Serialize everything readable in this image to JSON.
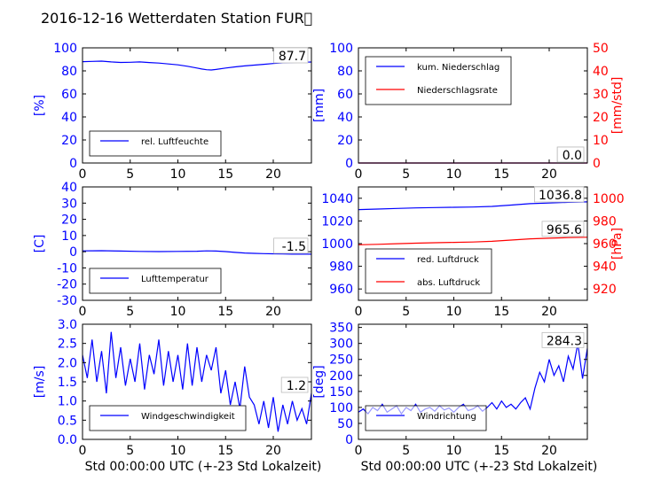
{
  "figure": {
    "title": "2016-12-16 Wetterdaten Station FUR\u0000",
    "colors": {
      "primary": "#0000ff",
      "secondary": "#ff0000",
      "text": "#000000"
    }
  },
  "chart_data": [
    {
      "id": "humidity",
      "type": "line",
      "ylabel": "[%]",
      "ylim": [
        0,
        100
      ],
      "yticks": [
        0,
        20,
        40,
        60,
        80,
        100
      ],
      "xlim": [
        0,
        24
      ],
      "xticks": [
        0,
        5,
        10,
        15,
        20
      ],
      "xticklabels": [
        "0",
        "5",
        "10",
        "15",
        "20"
      ],
      "last_value_label": "87.7",
      "legend": {
        "placement": "lower-left"
      },
      "series": [
        {
          "name": "rel. Luftfeuchte",
          "color": "#0000ff",
          "axis": "left",
          "x": [
            0,
            1,
            2,
            3,
            4,
            5,
            6,
            7,
            8,
            9,
            10,
            11,
            12,
            12.5,
            13,
            13.5,
            14,
            15,
            16,
            17,
            18,
            19,
            20,
            21,
            22,
            23,
            24
          ],
          "y": [
            88,
            88.2,
            88.5,
            87.8,
            87.3,
            87.5,
            87.8,
            87.2,
            86.8,
            86,
            85.2,
            84,
            82.5,
            81.6,
            81,
            80.8,
            81.2,
            82.5,
            83.5,
            84.3,
            85,
            85.7,
            86.4,
            87,
            87.3,
            87.5,
            87.7
          ]
        }
      ]
    },
    {
      "id": "precip",
      "type": "line",
      "ylabel": "[mm]",
      "ylim": [
        0,
        100
      ],
      "yticks": [
        0,
        20,
        40,
        60,
        80,
        100
      ],
      "ylabel_right": "[mm/std]",
      "ylim_right": [
        0,
        50
      ],
      "yticks_right": [
        0,
        10,
        20,
        30,
        40,
        50
      ],
      "xlim": [
        0,
        24
      ],
      "xticks": [
        0,
        5,
        10,
        15,
        20
      ],
      "xticklabels": [
        "0",
        "5",
        "10",
        "15",
        "20"
      ],
      "last_value_labels": [
        "0.0",
        "0.0"
      ],
      "legend": {
        "placement": "upper-left"
      },
      "series": [
        {
          "name": "kum. Niederschlag",
          "color": "#0000ff",
          "axis": "left",
          "x": [
            0,
            24
          ],
          "y": [
            0,
            0
          ]
        },
        {
          "name": "Niederschlagsrate",
          "color": "#ff0000",
          "axis": "right",
          "x": [
            0,
            24
          ],
          "y": [
            0,
            0
          ]
        }
      ]
    },
    {
      "id": "temperature",
      "type": "line",
      "ylabel": "[C]",
      "ylim": [
        -30,
        40
      ],
      "yticks": [
        -30,
        -20,
        -10,
        0,
        10,
        20,
        30,
        40
      ],
      "xlim": [
        0,
        24
      ],
      "xticks": [
        0,
        5,
        10,
        15,
        20
      ],
      "xticklabels": [
        "0",
        "5",
        "10",
        "15",
        "20"
      ],
      "last_value_label": "-1.5",
      "legend": {
        "placement": "lower-left"
      },
      "series": [
        {
          "name": "Lufttemperatur",
          "color": "#0000ff",
          "axis": "left",
          "x": [
            0,
            2,
            4,
            6,
            8,
            10,
            12,
            13,
            14,
            15,
            16,
            17,
            18,
            19,
            20,
            21,
            22,
            23,
            24
          ],
          "y": [
            0.5,
            0.6,
            0.4,
            0.2,
            0.1,
            0.2,
            0.3,
            0.5,
            0.4,
            0.1,
            -0.4,
            -0.8,
            -1.0,
            -1.2,
            -1.3,
            -1.4,
            -1.5,
            -1.5,
            -1.5
          ]
        }
      ]
    },
    {
      "id": "pressure",
      "type": "line",
      "ylim": [
        950,
        1050
      ],
      "yticks": [
        960,
        980,
        1000,
        1020,
        1040
      ],
      "ylabel_right": "[hPa]",
      "ylim_right": [
        910,
        1010
      ],
      "yticks_right": [
        920,
        940,
        960,
        980,
        1000
      ],
      "xlim": [
        0,
        24
      ],
      "xticks": [
        0,
        5,
        10,
        15,
        20
      ],
      "xticklabels": [
        "0",
        "5",
        "10",
        "15",
        "20"
      ],
      "last_value_labels": [
        "1036.8",
        "965.6"
      ],
      "legend": {
        "placement": "lower-left"
      },
      "series": [
        {
          "name": "red. Luftdruck",
          "color": "#0000ff",
          "axis": "left",
          "x": [
            0,
            2,
            4,
            6,
            8,
            10,
            12,
            14,
            16,
            18,
            20,
            22,
            24
          ],
          "y": [
            1030,
            1030.5,
            1031,
            1031.5,
            1031.8,
            1032,
            1032.3,
            1032.8,
            1034,
            1035.2,
            1035.8,
            1036.4,
            1036.8
          ]
        },
        {
          "name": "abs. Luftdruck",
          "color": "#ff0000",
          "axis": "right",
          "x": [
            0,
            2,
            4,
            6,
            8,
            10,
            12,
            14,
            16,
            18,
            20,
            22,
            24
          ],
          "y": [
            959,
            959.4,
            959.9,
            960.4,
            960.8,
            961.1,
            961.4,
            962,
            963.1,
            964.2,
            964.8,
            965.3,
            965.6
          ]
        }
      ]
    },
    {
      "id": "windspeed",
      "type": "line",
      "ylabel": "[m/s]",
      "ylim": [
        0,
        3
      ],
      "yticks": [
        0,
        0.5,
        1,
        1.5,
        2,
        2.5,
        3
      ],
      "yticklabels": [
        "0.0",
        "0.5",
        "1.0",
        "1.5",
        "2.0",
        "2.5",
        "3.0"
      ],
      "xlabel": "Std 00:00:00 UTC (+-23 Std Lokalzeit)",
      "xlim": [
        0,
        24
      ],
      "xticks": [
        0,
        5,
        10,
        15,
        20
      ],
      "xticklabels": [
        "0",
        "5",
        "10",
        "15",
        "20"
      ],
      "last_value_label": "1.2",
      "legend": {
        "placement": "lower-left"
      },
      "series": [
        {
          "name": "Windgeschwindigkeit",
          "color": "#0000ff",
          "axis": "left",
          "x": [
            0,
            0.5,
            1,
            1.5,
            2,
            2.5,
            3,
            3.5,
            4,
            4.5,
            5,
            5.5,
            6,
            6.5,
            7,
            7.5,
            8,
            8.5,
            9,
            9.5,
            10,
            10.5,
            11,
            11.5,
            12,
            12.5,
            13,
            13.5,
            14,
            14.5,
            15,
            15.5,
            16,
            16.5,
            17,
            17.5,
            18,
            18.5,
            19,
            19.5,
            20,
            20.5,
            21,
            21.5,
            22,
            22.5,
            23,
            23.5,
            24
          ],
          "y": [
            2.2,
            1.6,
            2.6,
            1.5,
            2.3,
            1.2,
            2.8,
            1.6,
            2.4,
            1.4,
            2.1,
            1.5,
            2.5,
            1.3,
            2.2,
            1.7,
            2.6,
            1.4,
            2.3,
            1.5,
            2.2,
            1.3,
            2.5,
            1.4,
            2.4,
            1.5,
            2.2,
            1.8,
            2.4,
            1.2,
            1.8,
            0.9,
            1.5,
            0.8,
            1.9,
            1.1,
            0.9,
            0.4,
            1.0,
            0.3,
            1.1,
            0.2,
            0.9,
            0.4,
            1.0,
            0.5,
            0.8,
            0.4,
            1.2
          ]
        }
      ]
    },
    {
      "id": "winddir",
      "type": "line",
      "ylabel": "[deg]",
      "ylim": [
        0,
        360
      ],
      "yticks": [
        0,
        50,
        100,
        150,
        200,
        250,
        300,
        350
      ],
      "xlabel": "Std 00:00:00 UTC (+-23 Std Lokalzeit)",
      "xlim": [
        0,
        24
      ],
      "xticks": [
        0,
        5,
        10,
        15,
        20
      ],
      "xticklabels": [
        "0",
        "5",
        "10",
        "15",
        "20"
      ],
      "last_value_label": "284.3",
      "legend": {
        "placement": "lower-left"
      },
      "series": [
        {
          "name": "Windrichtung",
          "color": "#0000ff",
          "axis": "left",
          "x": [
            0,
            0.5,
            1,
            1.5,
            2,
            2.5,
            3,
            3.5,
            4,
            4.5,
            5,
            5.5,
            6,
            6.5,
            7,
            7.5,
            8,
            8.5,
            9,
            9.5,
            10,
            10.5,
            11,
            11.5,
            12,
            12.5,
            13,
            13.5,
            14,
            14.5,
            15,
            15.5,
            16,
            16.5,
            17,
            17.5,
            18,
            18.5,
            19,
            19.5,
            20,
            20.5,
            21,
            21.5,
            22,
            22.5,
            23,
            23.5,
            24
          ],
          "y": [
            85,
            95,
            80,
            100,
            90,
            110,
            85,
            95,
            105,
            80,
            100,
            90,
            110,
            85,
            95,
            100,
            88,
            105,
            92,
            98,
            85,
            100,
            110,
            90,
            95,
            105,
            88,
            100,
            115,
            95,
            120,
            100,
            110,
            95,
            115,
            130,
            95,
            160,
            210,
            180,
            250,
            200,
            230,
            180,
            260,
            220,
            300,
            190,
            284.3
          ]
        }
      ]
    }
  ]
}
